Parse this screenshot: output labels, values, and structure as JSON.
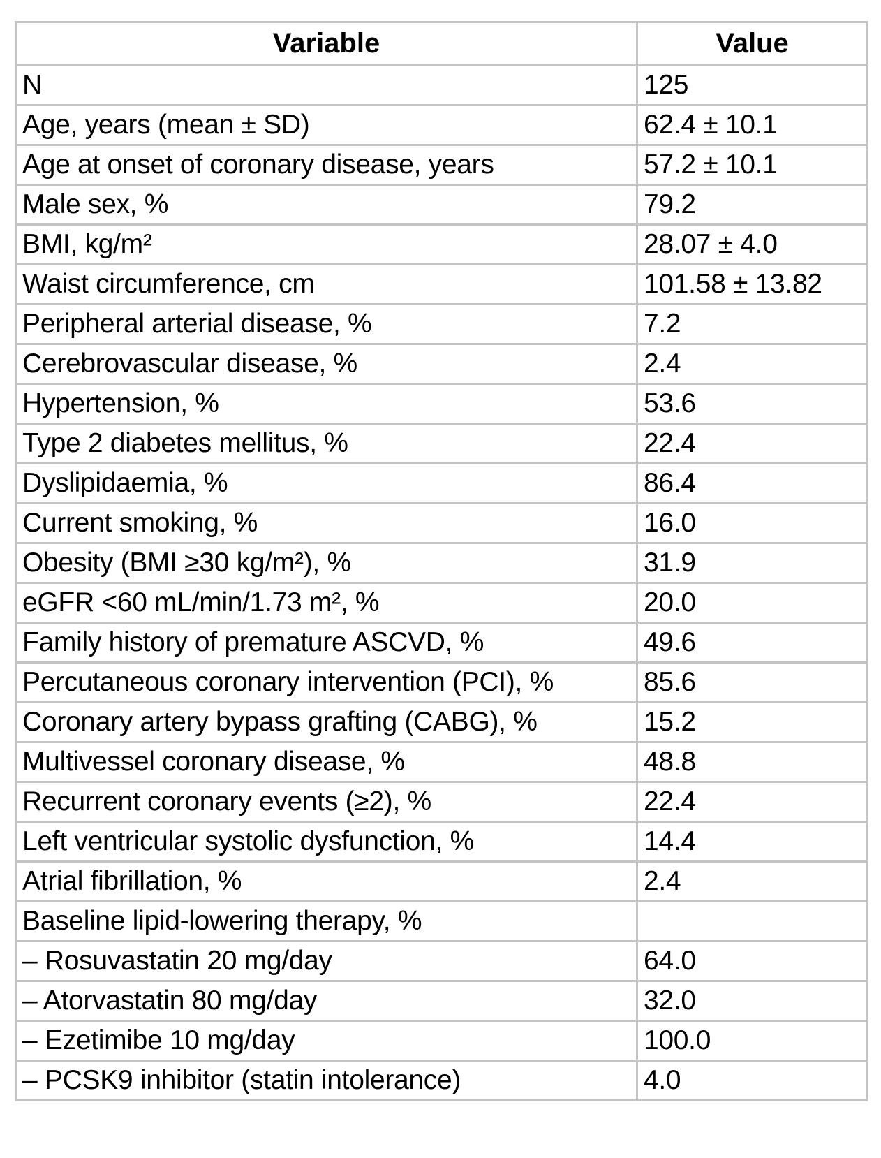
{
  "table": {
    "title_semantic": "baseline-characteristics-table",
    "border_color": "#c4c4c4",
    "text_color": "#000000",
    "background_color": "#ffffff",
    "columns": [
      "Variable",
      "Value"
    ],
    "rows": [
      {
        "variable": "N",
        "value": "125"
      },
      {
        "variable": "Age, years (mean ± SD)",
        "value": "62.4 ± 10.1"
      },
      {
        "variable": "Age at onset of coronary disease, years",
        "value": "57.2 ± 10.1"
      },
      {
        "variable": "Male sex, %",
        "value": "79.2"
      },
      {
        "variable": "BMI, kg/m²",
        "value": "28.07 ± 4.0"
      },
      {
        "variable": "Waist circumference, cm",
        "value": "101.58 ± 13.82"
      },
      {
        "variable": "Peripheral arterial disease, %",
        "value": "7.2"
      },
      {
        "variable": "Cerebrovascular disease, %",
        "value": "2.4"
      },
      {
        "variable": "Hypertension, %",
        "value": "53.6"
      },
      {
        "variable": "Type 2 diabetes mellitus, %",
        "value": "22.4"
      },
      {
        "variable": "Dyslipidaemia, %",
        "value": "86.4"
      },
      {
        "variable": "Current smoking, %",
        "value": "16.0"
      },
      {
        "variable": "Obesity (BMI ≥30 kg/m²), %",
        "value": "31.9"
      },
      {
        "variable": "eGFR <60 mL/min/1.73 m², %",
        "value": "20.0"
      },
      {
        "variable": "Family history of premature ASCVD, %",
        "value": "49.6"
      },
      {
        "variable": "Percutaneous coronary intervention (PCI), %",
        "value": "85.6"
      },
      {
        "variable": "Coronary artery bypass grafting (CABG), %",
        "value": "15.2"
      },
      {
        "variable": "Multivessel coronary disease, %",
        "value": "48.8"
      },
      {
        "variable": "Recurrent coronary events (≥2), %",
        "value": "22.4"
      },
      {
        "variable": "Left ventricular systolic dysfunction, %",
        "value": "14.4"
      },
      {
        "variable": "Atrial fibrillation, %",
        "value": "2.4"
      },
      {
        "variable": "Baseline lipid-lowering therapy, %",
        "value": ""
      },
      {
        "variable": "– Rosuvastatin 20 mg/day",
        "value": "64.0"
      },
      {
        "variable": "– Atorvastatin 80 mg/day",
        "value": "32.0"
      },
      {
        "variable": "– Ezetimibe 10 mg/day",
        "value": "100.0"
      },
      {
        "variable": "– PCSK9 inhibitor (statin intolerance)",
        "value": "4.0"
      }
    ]
  }
}
